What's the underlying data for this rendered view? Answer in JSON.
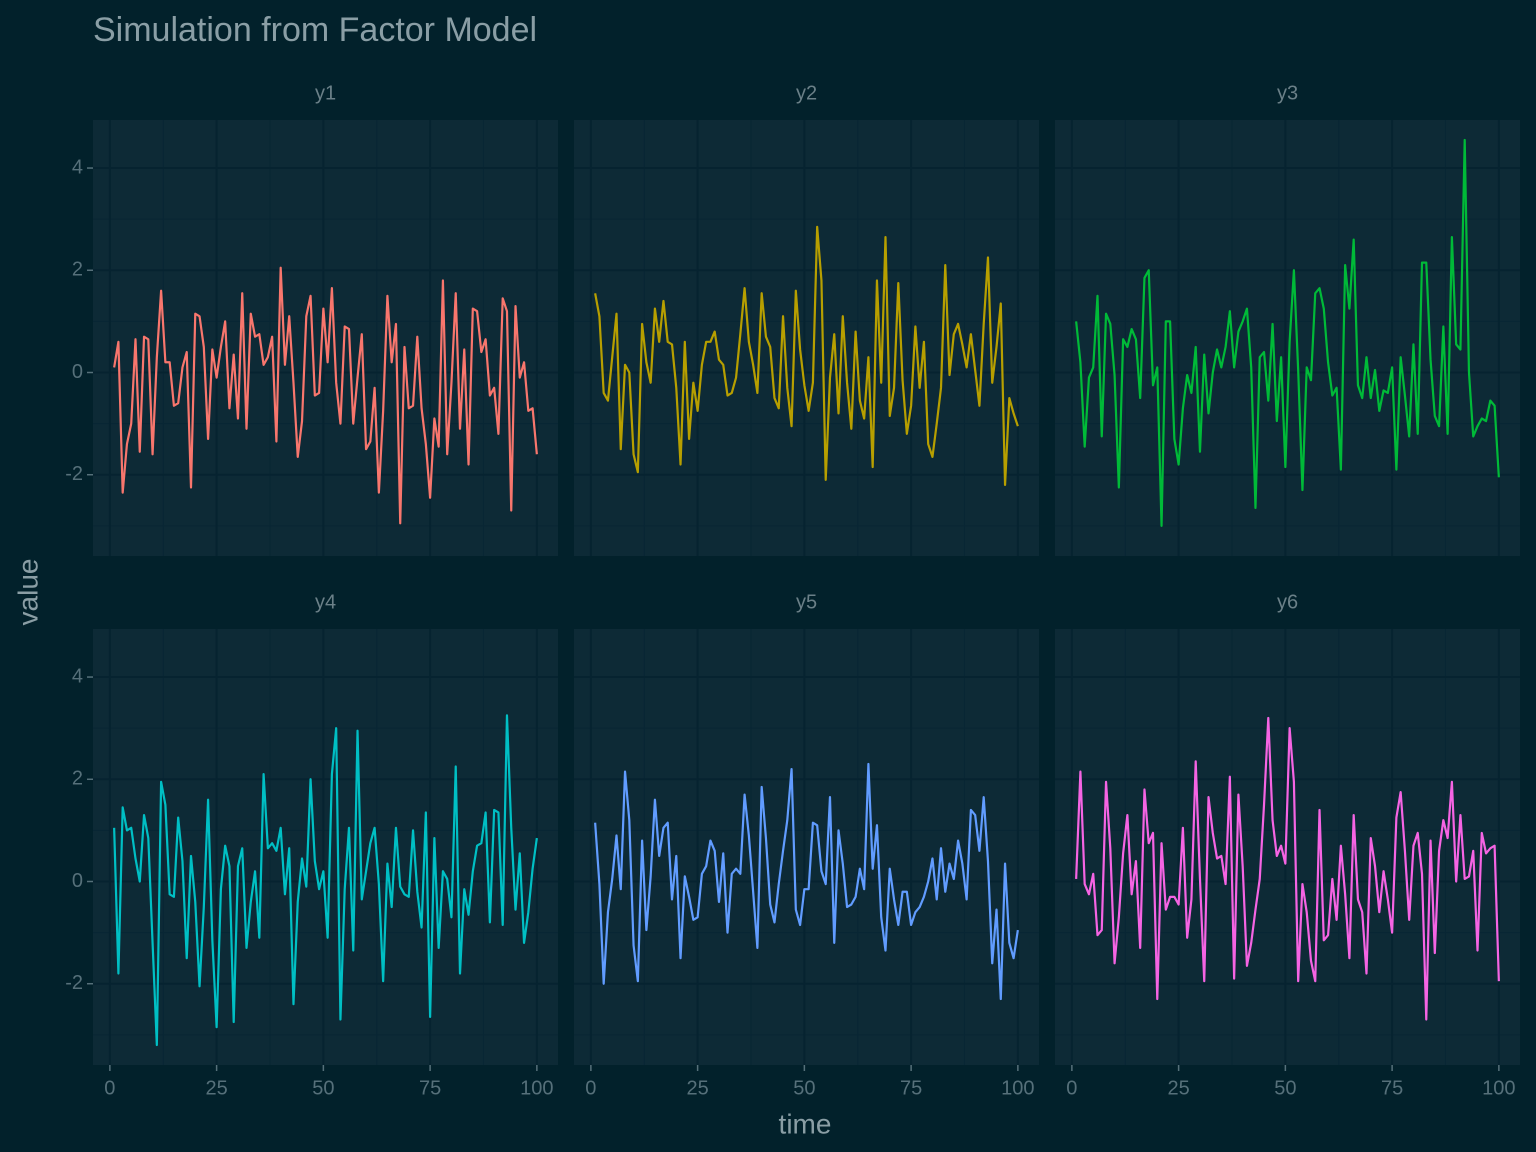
{
  "chart_data": {
    "type": "line",
    "title": "Simulation from Factor Model",
    "x_label": "time",
    "y_label": "value",
    "facet_columns": 3,
    "x": [
      1,
      2,
      3,
      4,
      5,
      6,
      7,
      8,
      9,
      10,
      11,
      12,
      13,
      14,
      15,
      16,
      17,
      18,
      19,
      20,
      21,
      22,
      23,
      24,
      25,
      26,
      27,
      28,
      29,
      30,
      31,
      32,
      33,
      34,
      35,
      36,
      37,
      38,
      39,
      40,
      41,
      42,
      43,
      44,
      45,
      46,
      47,
      48,
      49,
      50,
      51,
      52,
      53,
      54,
      55,
      56,
      57,
      58,
      59,
      60,
      61,
      62,
      63,
      64,
      65,
      66,
      67,
      68,
      69,
      70,
      71,
      72,
      73,
      74,
      75,
      76,
      77,
      78,
      79,
      80,
      81,
      82,
      83,
      84,
      85,
      86,
      87,
      88,
      89,
      90,
      91,
      92,
      93,
      94,
      95,
      96,
      97,
      98,
      99,
      100
    ],
    "xlim": [
      -3.95,
      104.95
    ],
    "ylim": [
      -3.59,
      4.94
    ],
    "xticks": [
      0,
      25,
      50,
      75,
      100
    ],
    "yticks": [
      -2,
      0,
      2,
      4
    ],
    "xminor": [
      12.5,
      37.5,
      62.5,
      87.5
    ],
    "yminor": [
      -3,
      -1,
      1,
      3
    ],
    "grid": true,
    "series": [
      {
        "name": "y1",
        "color": "#F8766D",
        "values": [
          0.1,
          0.6,
          -2.35,
          -1.4,
          -1.0,
          0.65,
          -1.55,
          0.7,
          0.65,
          -1.6,
          0.3,
          1.6,
          0.2,
          0.2,
          -0.65,
          -0.6,
          0.1,
          0.4,
          -2.25,
          1.15,
          1.1,
          0.5,
          -1.3,
          0.45,
          -0.1,
          0.5,
          1.0,
          -0.7,
          0.35,
          -0.9,
          1.55,
          -1.1,
          1.15,
          0.7,
          0.75,
          0.15,
          0.3,
          0.7,
          -1.35,
          2.05,
          0.15,
          1.1,
          -0.2,
          -1.65,
          -0.95,
          1.1,
          1.5,
          -0.45,
          -0.4,
          1.25,
          0.2,
          1.65,
          -0.2,
          -1.0,
          0.9,
          0.85,
          -1.0,
          -0.1,
          0.75,
          -1.5,
          -1.35,
          -0.3,
          -2.35,
          -0.75,
          1.5,
          0.2,
          0.95,
          -2.95,
          0.5,
          -0.7,
          -0.65,
          0.7,
          -0.7,
          -1.4,
          -2.45,
          -0.9,
          -1.45,
          1.8,
          -1.6,
          -0.2,
          1.55,
          -1.1,
          0.45,
          -1.8,
          1.25,
          1.2,
          0.4,
          0.65,
          -0.45,
          -0.3,
          -1.2,
          1.45,
          1.2,
          -2.7,
          1.3,
          -0.1,
          0.2,
          -0.75,
          -0.7,
          -1.6
        ]
      },
      {
        "name": "y2",
        "color": "#B79F00",
        "values": [
          1.55,
          1.1,
          -0.4,
          -0.55,
          0.3,
          1.15,
          -1.5,
          0.15,
          0.0,
          -1.6,
          -1.95,
          0.95,
          0.2,
          -0.2,
          1.25,
          0.6,
          1.4,
          0.6,
          0.55,
          -0.3,
          -1.8,
          0.6,
          -1.3,
          -0.2,
          -0.75,
          0.15,
          0.6,
          0.6,
          0.8,
          0.25,
          0.15,
          -0.45,
          -0.4,
          -0.1,
          0.75,
          1.65,
          0.6,
          0.15,
          -0.4,
          1.55,
          0.7,
          0.5,
          -0.5,
          -0.7,
          1.1,
          -0.3,
          -1.05,
          1.6,
          0.45,
          -0.25,
          -0.75,
          -0.2,
          2.85,
          1.8,
          -2.1,
          -0.1,
          0.75,
          -0.8,
          1.1,
          -0.2,
          -1.1,
          0.8,
          -0.55,
          -0.9,
          0.3,
          -1.85,
          1.8,
          -0.2,
          2.65,
          -0.85,
          -0.3,
          1.75,
          -0.15,
          -1.2,
          -0.65,
          0.9,
          -0.3,
          0.6,
          -1.4,
          -1.65,
          -1.0,
          -0.3,
          2.1,
          -0.05,
          0.75,
          0.95,
          0.55,
          0.1,
          0.75,
          0.05,
          -0.65,
          0.95,
          2.25,
          -0.2,
          0.5,
          1.35,
          -2.2,
          -0.5,
          -0.8,
          -1.05
        ]
      },
      {
        "name": "y3",
        "color": "#00BA38",
        "values": [
          1.0,
          0.2,
          -1.45,
          -0.1,
          0.1,
          1.5,
          -1.25,
          1.15,
          0.95,
          -0.05,
          -2.25,
          0.65,
          0.5,
          0.85,
          0.65,
          -0.5,
          1.85,
          2.0,
          -0.25,
          0.1,
          -3.0,
          1.0,
          1.0,
          -1.3,
          -1.8,
          -0.7,
          -0.05,
          -0.4,
          0.5,
          -1.55,
          0.35,
          -0.8,
          0.0,
          0.45,
          0.1,
          0.5,
          1.2,
          0.1,
          0.8,
          1.0,
          1.25,
          0.1,
          -2.65,
          0.3,
          0.4,
          -0.55,
          0.95,
          -0.95,
          0.3,
          -1.85,
          0.6,
          2.0,
          0.05,
          -2.3,
          0.1,
          -0.15,
          1.55,
          1.65,
          1.25,
          0.2,
          -0.45,
          -0.3,
          -1.9,
          2.1,
          1.25,
          2.6,
          -0.25,
          -0.5,
          0.3,
          -0.5,
          0.05,
          -0.75,
          -0.35,
          -0.4,
          0.1,
          -1.9,
          0.3,
          -0.45,
          -1.25,
          0.55,
          -1.2,
          2.15,
          2.15,
          0.25,
          -0.85,
          -1.05,
          0.9,
          -1.2,
          2.65,
          0.55,
          0.45,
          4.55,
          0.0,
          -1.25,
          -1.05,
          -0.9,
          -0.95,
          -0.55,
          -0.65,
          -2.05
        ]
      },
      {
        "name": "y4",
        "color": "#00BFC4",
        "values": [
          1.05,
          -1.8,
          1.45,
          1.0,
          1.05,
          0.45,
          0.0,
          1.3,
          0.85,
          -1.2,
          -3.2,
          1.95,
          1.5,
          -0.25,
          -0.3,
          1.25,
          0.4,
          -1.5,
          0.5,
          -0.4,
          -2.05,
          -0.5,
          1.6,
          -1.15,
          -2.85,
          -0.15,
          0.7,
          0.3,
          -2.75,
          0.3,
          0.65,
          -1.3,
          -0.4,
          0.2,
          -1.1,
          2.1,
          0.65,
          0.75,
          0.6,
          1.05,
          -0.25,
          0.65,
          -2.4,
          -0.4,
          0.45,
          -0.1,
          2.0,
          0.4,
          -0.15,
          0.2,
          -1.1,
          2.1,
          3.0,
          -2.7,
          -0.15,
          1.05,
          -1.35,
          2.95,
          -0.35,
          0.2,
          0.75,
          1.05,
          -0.05,
          -1.95,
          0.35,
          -0.5,
          1.05,
          -0.1,
          -0.25,
          -0.3,
          1.0,
          -0.2,
          -0.9,
          1.35,
          -2.65,
          0.85,
          -1.3,
          0.2,
          0.05,
          -0.7,
          2.25,
          -1.8,
          -0.15,
          -0.65,
          0.2,
          0.7,
          0.75,
          1.35,
          -0.8,
          1.4,
          1.35,
          -0.85,
          3.25,
          1.05,
          -0.55,
          0.55,
          -1.2,
          -0.6,
          0.25,
          0.85
        ]
      },
      {
        "name": "y5",
        "color": "#619CFF",
        "values": [
          1.15,
          -0.05,
          -2.0,
          -0.6,
          0.05,
          0.9,
          -0.15,
          2.15,
          1.2,
          -1.25,
          -1.95,
          0.8,
          -0.95,
          0.1,
          1.6,
          0.5,
          1.05,
          1.15,
          -0.35,
          0.5,
          -1.5,
          0.1,
          -0.3,
          -0.75,
          -0.7,
          0.15,
          0.3,
          0.8,
          0.6,
          -0.4,
          0.55,
          -1.0,
          0.15,
          0.25,
          0.15,
          1.7,
          0.9,
          -0.2,
          -1.3,
          1.85,
          0.85,
          -0.45,
          -0.8,
          -0.05,
          0.6,
          1.2,
          2.2,
          -0.55,
          -0.85,
          -0.15,
          -0.15,
          1.15,
          1.1,
          0.2,
          -0.05,
          1.65,
          -1.2,
          1.0,
          0.35,
          -0.5,
          -0.45,
          -0.3,
          0.25,
          -0.15,
          2.3,
          0.25,
          1.1,
          -0.7,
          -1.35,
          0.25,
          -0.35,
          -0.85,
          -0.2,
          -0.2,
          -0.85,
          -0.6,
          -0.5,
          -0.3,
          0.0,
          0.45,
          -0.35,
          0.65,
          -0.2,
          0.35,
          0.05,
          0.8,
          0.35,
          -0.35,
          1.4,
          1.3,
          0.6,
          1.65,
          0.4,
          -1.6,
          -0.55,
          -2.3,
          0.35,
          -1.2,
          -1.5,
          -0.95
        ]
      },
      {
        "name": "y6",
        "color": "#F564E3",
        "values": [
          0.05,
          2.15,
          -0.05,
          -0.25,
          0.15,
          -1.05,
          -0.95,
          1.95,
          0.65,
          -1.6,
          -0.7,
          0.55,
          1.3,
          -0.25,
          0.4,
          -1.3,
          1.8,
          0.75,
          0.95,
          -2.3,
          0.75,
          -0.55,
          -0.3,
          -0.3,
          -0.45,
          1.05,
          -1.1,
          -0.35,
          2.35,
          0.05,
          -1.95,
          1.65,
          0.95,
          0.45,
          0.5,
          -0.05,
          2.05,
          -1.9,
          1.7,
          0.3,
          -1.65,
          -1.2,
          -0.55,
          0.05,
          1.5,
          3.2,
          1.2,
          0.5,
          0.7,
          0.35,
          3.0,
          1.95,
          -1.95,
          -0.05,
          -0.6,
          -1.55,
          -1.95,
          1.4,
          -1.15,
          -1.05,
          0.05,
          -0.75,
          0.7,
          -0.25,
          -1.5,
          1.3,
          -0.35,
          -0.6,
          -1.8,
          0.85,
          0.3,
          -0.6,
          0.2,
          -0.35,
          -1.0,
          1.25,
          1.75,
          0.6,
          -0.75,
          0.7,
          0.95,
          0.15,
          -2.7,
          0.8,
          -1.4,
          0.6,
          1.2,
          0.85,
          1.95,
          0.0,
          1.3,
          0.05,
          0.1,
          0.6,
          -1.35,
          0.95,
          0.55,
          0.65,
          0.7,
          -1.95
        ]
      }
    ]
  }
}
